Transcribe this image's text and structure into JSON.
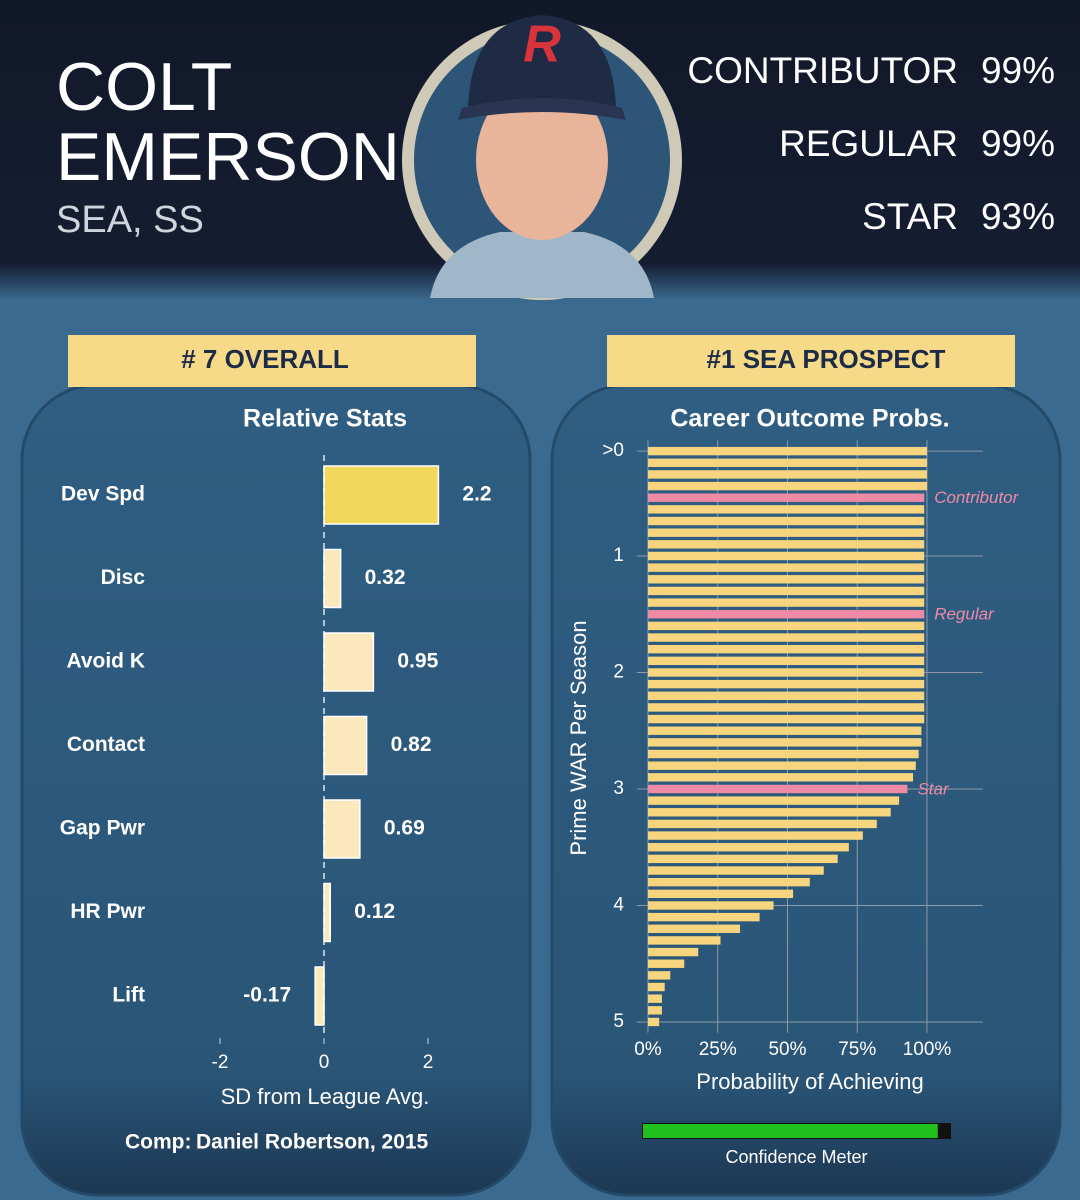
{
  "header": {
    "name_lines": [
      "COLT",
      "EMERSON"
    ],
    "team_position": "SEA, SS",
    "outcomes": [
      {
        "label": "CONTRIBUTOR",
        "value": "99%"
      },
      {
        "label": "REGULAR",
        "value": "99%"
      },
      {
        "label": "STAR",
        "value": "93%"
      }
    ]
  },
  "badges": [
    "# 7 OVERALL",
    "#1 SEA PROSPECT"
  ],
  "chart_data": [
    {
      "type": "hbar",
      "title": "Relative Stats",
      "categories": [
        "Dev Spd",
        "Disc",
        "Avoid K",
        "Contact",
        "Gap Pwr",
        "HR Pwr",
        "Lift"
      ],
      "values": [
        2.2,
        0.32,
        0.95,
        0.82,
        0.69,
        0.12,
        -0.17
      ],
      "colors": [
        "#f1d75c",
        "#fbe9bd",
        "#fbe9bd",
        "#fbe9bd",
        "#fbe9bd",
        "#fbe9bd",
        "#fbe9bd"
      ],
      "xlim": [
        -2.2,
        2.2
      ],
      "xticks": [
        -2,
        0,
        2
      ],
      "xlabel": "SD from League Avg."
    },
    {
      "type": "threshold",
      "title": "Career Outcome Probs.",
      "ylabel": "Prime WAR Per Season",
      "xlabel": "Probability of Achieving",
      "y": [
        0.1,
        0.2,
        0.3,
        0.4,
        0.5,
        0.6,
        0.7,
        0.8,
        0.9,
        1.0,
        1.1,
        1.2,
        1.3,
        1.4,
        1.5,
        1.6,
        1.7,
        1.8,
        1.9,
        2.0,
        2.1,
        2.2,
        2.3,
        2.4,
        2.5,
        2.6,
        2.7,
        2.8,
        2.9,
        3.0,
        3.1,
        3.2,
        3.3,
        3.4,
        3.5,
        3.6,
        3.7,
        3.8,
        3.9,
        4.0,
        4.1,
        4.2,
        4.3,
        4.4,
        4.5,
        4.6,
        4.7,
        4.8,
        4.9,
        5.0
      ],
      "values": [
        100,
        100,
        100,
        100,
        99,
        99,
        99,
        99,
        99,
        99,
        99,
        99,
        99,
        99,
        99,
        99,
        99,
        99,
        99,
        99,
        99,
        99,
        99,
        99,
        98,
        98,
        97,
        96,
        95,
        93,
        90,
        87,
        82,
        77,
        72,
        68,
        63,
        58,
        52,
        45,
        40,
        33,
        26,
        18,
        13,
        8,
        6,
        5,
        5,
        4
      ],
      "color": "#f6d57e",
      "highlight_color": "#ee8aa6",
      "annotations": [
        {
          "y": 0.5,
          "text": "Contributor"
        },
        {
          "y": 1.5,
          "text": "Regular"
        },
        {
          "y": 3.0,
          "text": "Star"
        }
      ],
      "ylim": [
        0.05,
        5.05
      ],
      "yticks": [
        {
          "value": 0.1,
          "label": ">0"
        },
        1,
        2,
        3,
        4,
        5
      ],
      "xlim": [
        -4,
        120
      ],
      "xticks": [
        {
          "value": 0,
          "label": "0%"
        },
        {
          "value": 25,
          "label": "25%"
        },
        {
          "value": 50,
          "label": "50%"
        },
        {
          "value": 75,
          "label": "75%"
        },
        {
          "value": 100,
          "label": "100%"
        }
      ],
      "grid": true
    }
  ],
  "comp": {
    "label": "Comp:",
    "value": "Daniel Robertson, 2015"
  },
  "confidence_meter": {
    "label": "Confidence Meter",
    "value": 96,
    "xlim": [
      0,
      100
    ],
    "color": "#22c21e"
  }
}
